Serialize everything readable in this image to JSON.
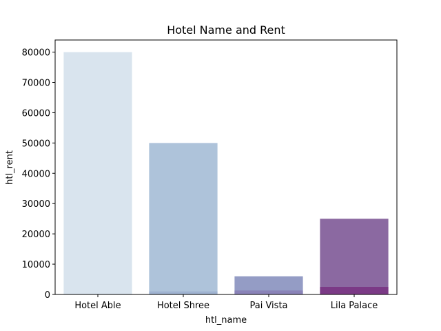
{
  "chart_data": {
    "type": "bar",
    "title": "Hotel Name and Rent",
    "xlabel": "htl_name",
    "ylabel": "htl_rent",
    "categories": [
      "Hotel Able",
      "Hotel Shree",
      "Pai Vista",
      "Lila Palace"
    ],
    "ylim": [
      0,
      84000
    ],
    "yticks": [
      "0",
      "10000",
      "20000",
      "30000",
      "40000",
      "50000",
      "60000",
      "70000",
      "80000"
    ],
    "grid": false,
    "series": [
      {
        "values": [
          80000,
          50000,
          6000,
          25000
        ],
        "colors": [
          "#d9e4ee",
          "#aec3da",
          "#949cc5",
          "#8b69a1"
        ]
      },
      {
        "values": [
          0,
          1000,
          1300,
          2500
        ],
        "colors": [
          "#d9e4ee",
          "#9fb3d1",
          "#8a83b8",
          "#7b3a86"
        ]
      }
    ]
  }
}
